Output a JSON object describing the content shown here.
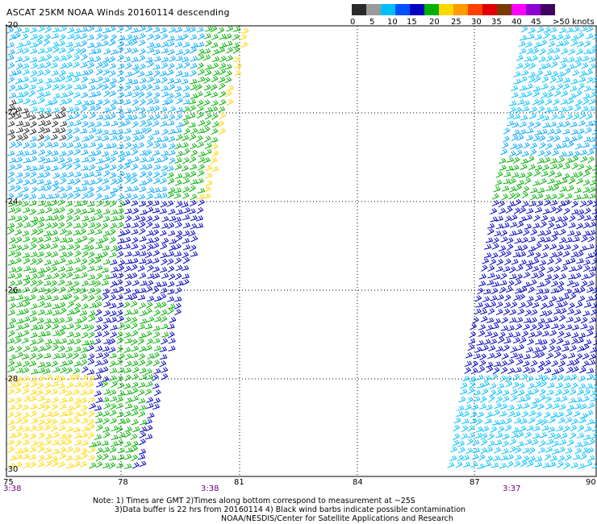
{
  "title": "ASCAT 25KM NOAA Winds 20160114 descending",
  "legend": {
    "colors": [
      "#2a2a2a",
      "#9a9a9a",
      "#00bfff",
      "#0050ff",
      "#0000c0",
      "#00b000",
      "#ffd700",
      "#ff9a00",
      "#ff4000",
      "#e00000",
      "#7a3b00",
      "#ff00ff",
      "#9000d0",
      "#400060"
    ],
    "labels": [
      "0",
      "5",
      "10",
      "15",
      "20",
      "25",
      "30",
      "35",
      "40",
      "45",
      ">50 knots"
    ]
  },
  "axes": {
    "x_ticks": [
      "75",
      "78",
      "81",
      "84",
      "87",
      "90"
    ],
    "y_ticks": [
      "-20",
      "-22",
      "-24",
      "-26",
      "-28",
      "-30"
    ]
  },
  "times": [
    "3:38",
    "3:38",
    "3:37"
  ],
  "notes": [
    "Note: 1) Times are GMT 2)Times along bottom correspond to measurement at ~25S",
    "3)Data buffer is 22 hrs from 20160114 4) Black wind barbs indicate possible contamination",
    "NOAA/NESDIS/Center for Satellite Applications and Research"
  ]
}
